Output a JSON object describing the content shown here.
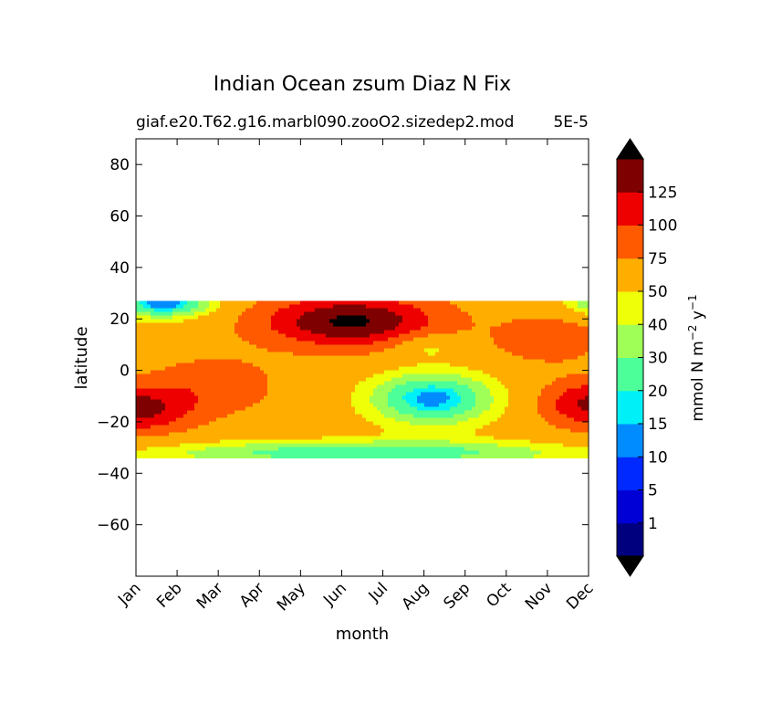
{
  "chart_data": {
    "type": "heatmap",
    "title": "Indian Ocean zsum Diaz N Fix",
    "subtitle_left": "giaf.e20.T62.g16.marbl090.zooO2.sizedep2.mod",
    "subtitle_right": "5E-5",
    "xlabel": "month",
    "ylabel": "latitude",
    "x_tick_labels": [
      "Jan",
      "Feb",
      "Mar",
      "Apr",
      "May",
      "Jun",
      "Jul",
      "Aug",
      "Sep",
      "Oct",
      "Nov",
      "Dec"
    ],
    "y_tick_labels": [
      "80",
      "60",
      "40",
      "20",
      "0",
      "−20",
      "−40",
      "−60"
    ],
    "y_ticks": [
      80,
      60,
      40,
      20,
      0,
      -20,
      -40,
      -60
    ],
    "ylim": [
      -80,
      90
    ],
    "data_lat_range": [
      -34,
      27
    ],
    "colorbar": {
      "label_main": "mmol N m",
      "label_exp1": "−2",
      "label_mid": " y",
      "label_exp2": "−1",
      "levels": [
        0,
        1,
        5,
        10,
        15,
        20,
        30,
        40,
        50,
        75,
        100,
        125,
        150
      ],
      "tick_labels": [
        "1",
        "5",
        "10",
        "15",
        "20",
        "30",
        "40",
        "50",
        "75",
        "100",
        "125"
      ],
      "colors": [
        "#00007f",
        "#0000d6",
        "#0029ff",
        "#008cff",
        "#00f0f7",
        "#4cff98",
        "#a0ff56",
        "#eeff08",
        "#ffae00",
        "#ff5a00",
        "#ee0000",
        "#7f0000"
      ],
      "over_color": "#000000",
      "under_color": "#000000"
    }
  }
}
